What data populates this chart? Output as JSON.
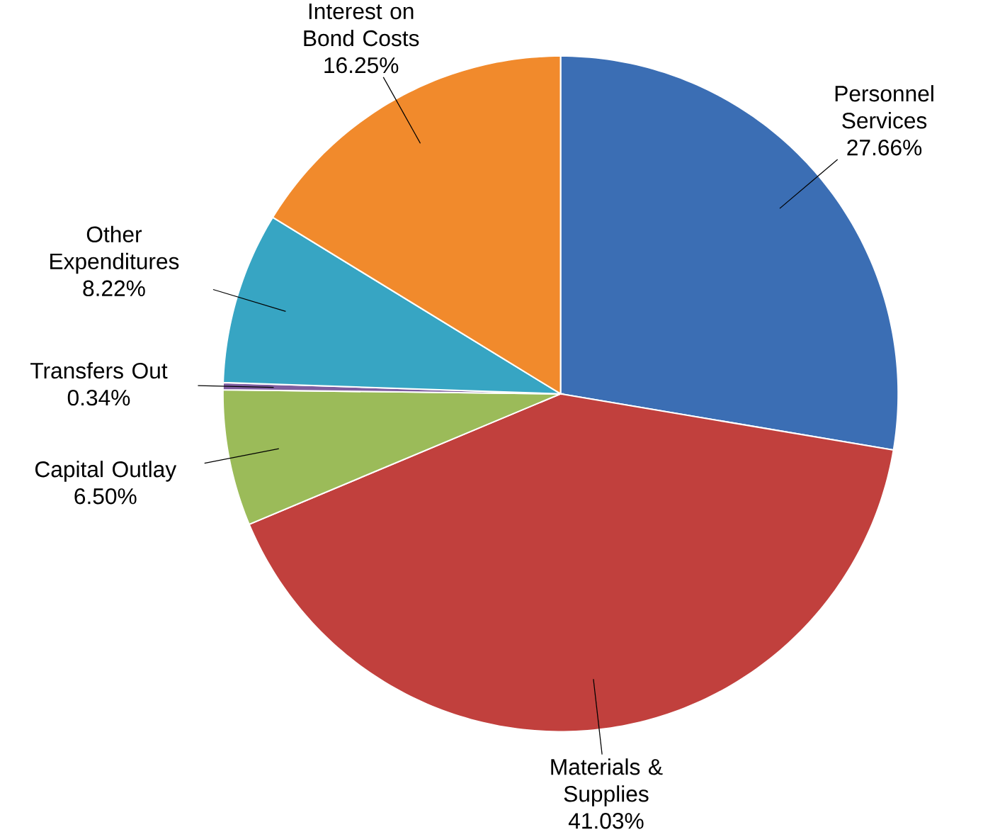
{
  "chart_data": {
    "type": "pie",
    "categories": [
      "Personnel Services",
      "Materials & Supplies",
      "Capital Outlay",
      "Transfers Out",
      "Other Expenditures",
      "Interest on Bond Costs"
    ],
    "values": [
      27.66,
      41.03,
      6.5,
      0.34,
      8.22,
      16.25
    ],
    "value_labels": [
      "27.66%",
      "41.03%",
      "6.50%",
      "0.34%",
      "8.22%",
      "16.25%"
    ],
    "colors": [
      "#3b6eb4",
      "#c1403d",
      "#9bbb59",
      "#7e5d9f",
      "#37a5c3",
      "#f18a2c"
    ]
  }
}
